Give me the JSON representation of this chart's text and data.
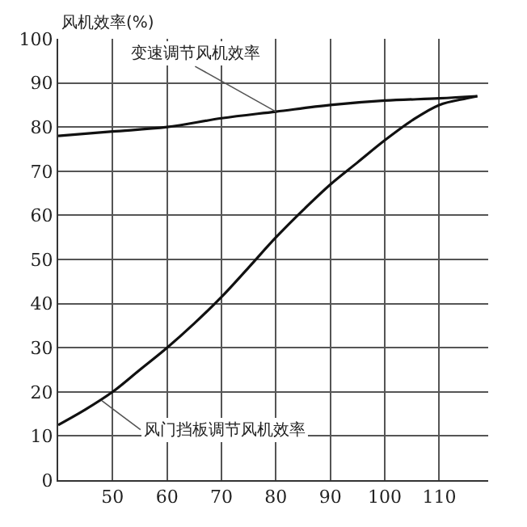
{
  "chart_data": {
    "type": "line",
    "ylabel": "风机效率(%)",
    "xlim": [
      40,
      119
    ],
    "xticks": [
      50,
      60,
      70,
      80,
      90,
      100,
      110
    ],
    "ylim": [
      0,
      100
    ],
    "yticks": [
      0,
      10,
      20,
      30,
      40,
      50,
      60,
      70,
      80,
      90,
      100
    ],
    "grid": true,
    "marker": "none",
    "line_style": "solid",
    "series": [
      {
        "color": "#111111",
        "x": [
          40,
          50,
          60,
          70,
          80,
          90,
          100,
          110,
          117
        ],
        "values": [
          78,
          79,
          80,
          82,
          83.5,
          85,
          86,
          86.5,
          87
        ]
      },
      {
        "color": "#111111",
        "x": [
          40,
          45,
          50,
          55,
          60,
          65,
          70,
          75,
          80,
          85,
          90,
          95,
          100,
          105,
          110,
          115,
          117
        ],
        "values": [
          12.5,
          16,
          20,
          25,
          30,
          35.5,
          41.5,
          48.2,
          55,
          61.2,
          67,
          72,
          77,
          81.5,
          85,
          86.5,
          87
        ]
      }
    ],
    "annotations": [
      {
        "text": "变速调节风机效率",
        "x": 80,
        "y": 83.5
      },
      {
        "text": "风门挡板调节风机效率",
        "x": 48,
        "y": 18
      }
    ]
  }
}
